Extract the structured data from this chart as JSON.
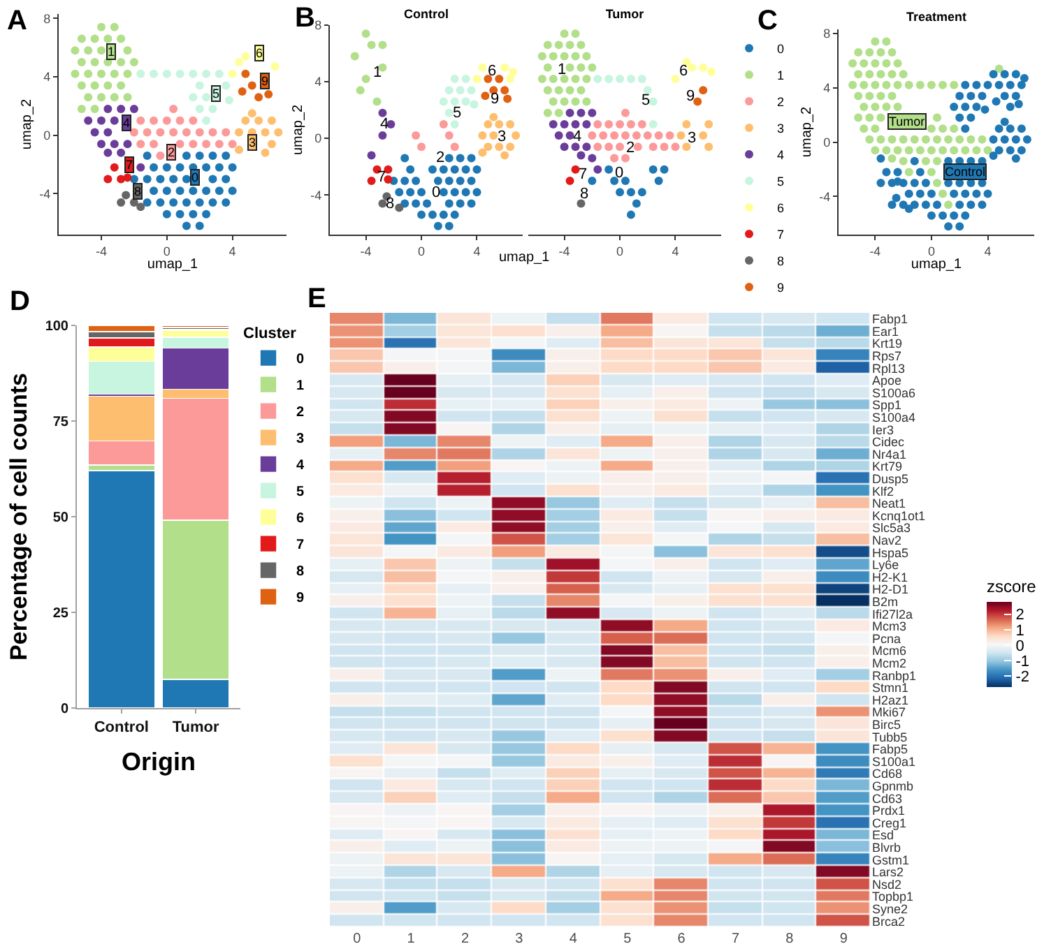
{
  "chart_data": [
    {
      "type": "scatter",
      "xlabel": "umap_1",
      "ylabel": "umap_2",
      "xlim": [
        -6.6,
        7.3
      ],
      "ylim": [
        -6.8,
        8.3
      ],
      "xticks": [
        -4,
        0,
        4
      ],
      "yticks": [
        -4,
        0,
        4,
        8
      ],
      "marker": "circle",
      "series": [
        {
          "color": "#1f78b4",
          "x": [
            -1.2,
            1.2,
            2.0,
            2.8,
            3.6,
            -0.8,
            0,
            0.8,
            1.6,
            2.4,
            3.2,
            4.0,
            -2.0,
            -1.2,
            -0.4,
            0.4,
            1.2,
            2.8,
            3.6,
            -0.8,
            0,
            0.8,
            1.6,
            2.4,
            3.2,
            4.0,
            -1.2,
            -0.4,
            0.4,
            1.2,
            2.0,
            2.8,
            3.6,
            0,
            0.8,
            1.6,
            2.4,
            1.2,
            2.0
          ],
          "values": [
            -1.4,
            -1.4,
            -1.4,
            -1.4,
            -1.4,
            -2.2,
            -2.2,
            -2.2,
            -2.2,
            -2.2,
            -2.2,
            -2.2,
            -3.0,
            -3.0,
            -3.0,
            -3.0,
            -3.0,
            -3.0,
            -3.0,
            -3.8,
            -3.8,
            -3.8,
            -3.8,
            -3.8,
            -3.8,
            -3.8,
            -4.6,
            -4.6,
            -4.6,
            -4.6,
            -4.6,
            -4.6,
            -4.6,
            -5.4,
            -5.4,
            -5.4,
            -5.4,
            -6.2,
            -6.2
          ]
        },
        {
          "color": "#b2df8a",
          "x": [
            -4.0,
            -3.2,
            -5.2,
            -4.4,
            -3.6,
            -2.8,
            -5.6,
            -4.8,
            -4.0,
            -2.4,
            -5.2,
            -4.4,
            -3.6,
            -2.8,
            -2.0,
            -5.6,
            -4.8,
            -4.0,
            -3.2,
            -2.4,
            -5.2,
            -4.4,
            -3.6,
            -2.8,
            -4.8,
            -4.0,
            -3.2,
            -2.4,
            -5.2,
            -4.4
          ],
          "values": [
            7.4,
            7.4,
            6.6,
            6.6,
            6.6,
            6.6,
            5.8,
            5.8,
            5.8,
            5.8,
            5.0,
            5.0,
            5.0,
            5.0,
            5.0,
            4.2,
            4.2,
            4.2,
            4.2,
            4.2,
            3.4,
            3.4,
            3.4,
            3.4,
            2.6,
            2.6,
            2.6,
            2.6,
            1.8,
            1.8
          ]
        },
        {
          "color": "#fb9a99",
          "x": [
            0.4,
            -1.6,
            -0.8,
            0,
            0.8,
            1.6,
            -2.0,
            -1.2,
            -0.4,
            0.4,
            1.2,
            2.0,
            2.8,
            3.6,
            -1.6,
            -0.8,
            0.8,
            1.6,
            2.4,
            3.2,
            4.0,
            -0.4
          ],
          "values": [
            1.8,
            1.0,
            1.0,
            1.0,
            1.0,
            1.0,
            0.2,
            0.2,
            0.2,
            0.2,
            0.2,
            0.2,
            0.2,
            0.2,
            -0.6,
            -0.6,
            -0.6,
            -0.6,
            -0.6,
            -0.6,
            -0.6,
            -1.4
          ]
        },
        {
          "color": "#fdbf6f",
          "x": [
            4.8,
            5.6,
            6.4,
            4.4,
            5.2,
            6.0,
            6.8,
            6.4,
            6.0,
            4.4,
            5.2
          ],
          "values": [
            1.0,
            1.0,
            1.0,
            0.2,
            0.2,
            0.2,
            0.2,
            -0.6,
            -1.2,
            -1.0,
            1.5
          ]
        },
        {
          "color": "#6a3d9a",
          "x": [
            -3.6,
            -2.8,
            -2.0,
            -4.8,
            -4.0,
            -3.2,
            -4.4,
            -3.6,
            -4.0,
            -3.2,
            -2.4,
            -1.6,
            -2.8,
            -3.6
          ],
          "values": [
            1.8,
            1.8,
            1.8,
            1.0,
            1.0,
            1.0,
            0.2,
            0.2,
            -0.6,
            -0.6,
            -0.6,
            -2.2,
            -1.2,
            -1.2
          ]
        },
        {
          "color": "#c7f5e0",
          "x": [
            -1.6,
            -0.8,
            0,
            0.8,
            1.6,
            2.4,
            3.2,
            2.0,
            3.6,
            1.6,
            2.4,
            2.0,
            2.8,
            2.4,
            3.8
          ],
          "values": [
            4.2,
            4.2,
            4.2,
            4.2,
            4.2,
            4.2,
            4.2,
            3.4,
            3.4,
            2.6,
            2.6,
            1.8,
            1.8,
            1.0,
            2.4
          ]
        },
        {
          "color": "#ffff99",
          "x": [
            4.4,
            4.0,
            4.8,
            6.6
          ],
          "values": [
            5.0,
            4.2,
            5.4,
            4.7
          ]
        },
        {
          "color": "#e31a1c",
          "x": [
            -3.2,
            -3.6,
            -2.8,
            -2.4
          ],
          "values": [
            -2.2,
            -3.0,
            -3.0,
            -2.9
          ]
        },
        {
          "color": "#666666",
          "x": [
            -2.8,
            -2.0,
            -2.5,
            -1.6
          ],
          "values": [
            -4.6,
            -4.6,
            -4.1,
            -4.9
          ]
        },
        {
          "color": "#df6213",
          "x": [
            4.8,
            5.2,
            5.6,
            4.6,
            6.2
          ],
          "values": [
            4.2,
            3.4,
            2.6,
            3.0,
            2.8
          ]
        }
      ],
      "annotations": [
        {
          "text": "0",
          "x": 1.7,
          "y": -2.9
        },
        {
          "text": "1",
          "x": -3.4,
          "y": 5.7
        },
        {
          "text": "2",
          "x": 0.3,
          "y": -1.2
        },
        {
          "text": "3",
          "x": 5.2,
          "y": -0.5
        },
        {
          "text": "4",
          "x": -2.5,
          "y": 0.8
        },
        {
          "text": "5",
          "x": 3.0,
          "y": 2.9
        },
        {
          "text": "6",
          "x": 5.6,
          "y": 5.6
        },
        {
          "text": "7",
          "x": -2.3,
          "y": -2.0
        },
        {
          "text": "8",
          "x": -1.8,
          "y": -3.8
        },
        {
          "text": "9",
          "x": 6.0,
          "y": 3.7
        },
        "A"
      ]
    },
    {
      "type": "scatter",
      "title": "Control",
      "xlabel": "umap_1",
      "ylabel": "umap_2",
      "xlim": [
        -6.6,
        7.3
      ],
      "ylim": [
        -6.8,
        8
      ],
      "xticks": [
        -4,
        0,
        4
      ],
      "yticks": [
        -4,
        0,
        4,
        8
      ],
      "marker": "circle",
      "series": [
        {
          "color": "#1f78b4",
          "x": [
            -1.2,
            2.0,
            2.8,
            3.6,
            -0.8,
            0.8,
            1.6,
            2.4,
            3.2,
            4.0,
            -2.0,
            -1.2,
            -0.4,
            1.2,
            2.0,
            2.8,
            3.6,
            -1.6,
            -0.8,
            0,
            1.6,
            2.4,
            3.2,
            4.0,
            -1.2,
            -0.4,
            0.4,
            2.0,
            2.8,
            3.6,
            0,
            0.8,
            1.6,
            2.4,
            1.2,
            2.0
          ],
          "values": [
            -1.4,
            -1.4,
            -1.4,
            -1.4,
            -2.2,
            -2.2,
            -2.2,
            -2.2,
            -2.2,
            -2.2,
            -3.0,
            -3.0,
            -3.0,
            -3.0,
            -3.0,
            -3.0,
            -3.0,
            -3.8,
            -3.8,
            -3.8,
            -3.8,
            -3.8,
            -3.8,
            -3.8,
            -4.6,
            -4.6,
            -4.6,
            -4.6,
            -4.6,
            -4.6,
            -5.4,
            -5.4,
            -5.4,
            -5.4,
            -6.2,
            -6.2
          ]
        },
        {
          "color": "#b2df8a",
          "x": [
            -4.0,
            -3.6,
            -2.8,
            -4.8,
            -2.8,
            -4.0,
            -4.4,
            -3.2
          ],
          "values": [
            7.4,
            6.6,
            6.6,
            5.8,
            5.0,
            4.2,
            3.4,
            2.6
          ]
        },
        {
          "color": "#fb9a99",
          "x": [
            1.6,
            -0.4,
            2.0,
            0,
            2.4
          ],
          "values": [
            1.0,
            0.2,
            0.2,
            -0.6,
            -0.6
          ]
        },
        {
          "color": "#fdbf6f",
          "x": [
            4.8,
            5.6,
            6.4,
            4.4,
            5.2,
            6.8,
            4.8,
            5.6,
            6.4,
            6.0,
            4.4,
            5.2
          ],
          "values": [
            1.0,
            1.0,
            1.0,
            0.2,
            0.2,
            0.2,
            -0.6,
            -0.6,
            -0.6,
            -1.2,
            -1.0,
            1.5
          ]
        },
        {
          "color": "#6a3d9a",
          "x": [
            -2.8,
            -2.8,
            -3.6,
            -2.2
          ],
          "values": [
            1.8,
            0.2,
            -1.2,
            1.0
          ]
        },
        {
          "color": "#c7f5e0",
          "x": [
            2.4,
            3.2,
            2.0,
            2.8,
            3.6,
            1.6,
            2.4,
            3.2,
            2.0,
            2.4,
            3.8
          ],
          "values": [
            4.2,
            4.2,
            3.4,
            3.4,
            3.4,
            2.6,
            2.6,
            2.6,
            1.8,
            1.0,
            2.4
          ]
        },
        {
          "color": "#ffff99",
          "x": [
            4.4,
            6.0,
            4.0,
            6.4,
            6.6
          ],
          "values": [
            5.0,
            5.0,
            4.2,
            4.2,
            4.7
          ]
        },
        {
          "color": "#e31a1c",
          "x": [
            -3.2,
            -2.4,
            -3.6,
            -2.4
          ],
          "values": [
            -2.2,
            -2.2,
            -3.0,
            -2.9
          ]
        },
        {
          "color": "#666666",
          "x": [
            -2.8,
            -2.5,
            -1.6
          ],
          "values": [
            -4.6,
            -4.1,
            -4.9
          ]
        },
        {
          "color": "#df6213",
          "x": [
            4.8,
            5.6,
            5.2,
            6.0,
            4.6,
            6.2
          ],
          "values": [
            4.2,
            4.2,
            3.4,
            3.4,
            3.0,
            2.8
          ]
        }
      ],
      "annotations": [
        {
          "text": "0",
          "x": 1.1,
          "y": -3.8
        },
        {
          "text": "1",
          "x": -3.2,
          "y": 4.6
        },
        {
          "text": "2",
          "x": 1.4,
          "y": -1.4
        },
        {
          "text": "3",
          "x": 5.8,
          "y": 0.1
        },
        {
          "text": "4",
          "x": -2.7,
          "y": 1.0
        },
        {
          "text": "5",
          "x": 2.6,
          "y": 1.8
        },
        {
          "text": "6",
          "x": 5.1,
          "y": 4.7
        },
        {
          "text": "7",
          "x": -2.9,
          "y": -2.8
        },
        {
          "text": "8",
          "x": -2.3,
          "y": -4.6
        },
        {
          "text": "9",
          "x": 5.3,
          "y": 2.8
        },
        "B"
      ]
    },
    {
      "type": "scatter",
      "title": "Tumor",
      "xlim": [
        -6.6,
        7.3
      ],
      "ylim": [
        -6.8,
        8
      ],
      "xticks": [
        -4,
        0,
        4
      ],
      "marker": "circle",
      "tick_labels": "x",
      "legend": "right",
      "series": [
        {
          "name": "0",
          "color": "#1f78b4",
          "x": [
            -0.8,
            2.4,
            3.2,
            -2.0,
            -0.4,
            0.4,
            2.8,
            0,
            0.8,
            1.6,
            1.2,
            0.8
          ],
          "values": [
            -2.2,
            -2.2,
            -2.2,
            -3.0,
            -3.0,
            -3.0,
            -3.0,
            -3.8,
            -3.8,
            -3.8,
            -4.6,
            -5.4
          ]
        },
        {
          "name": "1",
          "color": "#b2df8a",
          "x": [
            -4.0,
            -3.2,
            -5.2,
            -4.4,
            -3.6,
            -2.8,
            -5.6,
            -4.8,
            -4.0,
            -3.2,
            -2.4,
            -5.2,
            -3.6,
            -2.8,
            -2.0,
            -5.6,
            -4.8,
            -4.0,
            -3.2,
            -2.4,
            -5.2,
            -4.4,
            -3.6,
            -2.8,
            -4.8,
            -4.0,
            -3.2,
            -2.4,
            -5.2,
            -4.4
          ],
          "values": [
            7.4,
            7.4,
            6.6,
            6.6,
            6.6,
            6.6,
            5.8,
            5.8,
            5.8,
            5.8,
            5.8,
            5.0,
            5.0,
            5.0,
            5.0,
            4.2,
            4.2,
            4.2,
            4.2,
            4.2,
            3.4,
            3.4,
            3.4,
            3.4,
            2.6,
            2.6,
            2.6,
            2.6,
            1.8,
            1.8
          ]
        },
        {
          "name": "2",
          "color": "#fb9a99",
          "x": [
            0.4,
            -1.6,
            -0.8,
            0,
            0.8,
            1.6,
            -2.0,
            -1.2,
            -0.4,
            0.4,
            1.2,
            2.0,
            2.8,
            3.6,
            -1.6,
            -0.8,
            0,
            1.3,
            2.4,
            3.2,
            4.0,
            -0.4,
            0.4
          ],
          "values": [
            1.8,
            1.0,
            1.0,
            1.0,
            1.0,
            1.0,
            0.2,
            0.2,
            0.2,
            0.2,
            0.2,
            0.2,
            0.2,
            0.2,
            -0.6,
            -0.6,
            -0.6,
            -0.6,
            -0.6,
            -0.6,
            -0.6,
            -1.4,
            -1.4
          ]
        },
        {
          "name": "3",
          "color": "#fdbf6f",
          "x": [
            4.8,
            6.4,
            4.4,
            6.0,
            4.8,
            6.4
          ],
          "values": [
            1.0,
            1.0,
            0.2,
            0.2,
            -0.6,
            -0.6
          ]
        },
        {
          "name": "4",
          "color": "#6a3d9a",
          "x": [
            -3.6,
            -2.8,
            -2.0,
            -4.8,
            -4.0,
            -3.2,
            -2.4,
            -4.4,
            -3.6,
            -4.0,
            -3.2,
            -2.4,
            -2.0,
            -1.6,
            -2.8
          ],
          "values": [
            1.8,
            1.8,
            1.8,
            1.0,
            1.0,
            1.0,
            1.0,
            0.2,
            0.2,
            -0.6,
            -0.6,
            -0.6,
            -1.4,
            -2.2,
            -1.2
          ]
        },
        {
          "name": "5",
          "color": "#c7f5e0",
          "x": [
            -1.6,
            -0.8,
            0,
            0.8,
            1.6,
            2.0,
            2.4,
            2.4
          ],
          "values": [
            4.2,
            4.2,
            4.2,
            4.2,
            4.2,
            3.4,
            2.6,
            1.0
          ]
        },
        {
          "name": "6",
          "color": "#ffff99",
          "x": [
            5.2,
            4.0,
            4.8,
            6.0,
            6.6
          ],
          "values": [
            5.0,
            4.2,
            5.4,
            5.0,
            4.7
          ]
        },
        {
          "name": "7",
          "color": "#e31a1c",
          "x": [
            -3.6,
            -3.2
          ],
          "values": [
            -3.0,
            -2.2
          ]
        },
        {
          "name": "8",
          "color": "#666666",
          "x": [
            -2.8
          ],
          "values": [
            -4.6
          ]
        },
        {
          "name": "9",
          "color": "#df6213",
          "x": [
            6.0,
            5.6
          ],
          "values": [
            3.4,
            2.6
          ]
        }
      ],
      "annotations": [
        {
          "text": "0",
          "x": -0.1,
          "y": -2.5
        },
        {
          "text": "1",
          "x": -4.2,
          "y": 4.8
        },
        {
          "text": "2",
          "x": 0.8,
          "y": -0.7
        },
        {
          "text": "3",
          "x": 5.2,
          "y": 0
        },
        {
          "text": "4",
          "x": -3.1,
          "y": 0.1
        },
        {
          "text": "5",
          "x": 1.9,
          "y": 2.7
        },
        {
          "text": "6",
          "x": 4.6,
          "y": 4.7
        },
        {
          "text": "7",
          "x": -2.7,
          "y": -2.6
        },
        {
          "text": "8",
          "x": -2.6,
          "y": -3.9
        },
        {
          "text": "9",
          "x": 5.1,
          "y": 3.0
        }
      ]
    },
    {
      "type": "scatter",
      "title": "Treatment",
      "xlabel": "umap_1",
      "ylabel": "umap_2",
      "xlim": [
        -6.6,
        7.3
      ],
      "ylim": [
        -6.8,
        8.3
      ],
      "xticks": [
        -4,
        0,
        4
      ],
      "yticks": [
        -4,
        0,
        4,
        8
      ],
      "marker": "circle",
      "series": [
        {
          "color": "#b2df8a",
          "x": [
            -4.0,
            -3.2,
            -5.2,
            -4.4,
            -3.6,
            -2.8,
            -5.6,
            -4.8,
            -4.0,
            -3.2,
            -2.4,
            -5.2,
            -4.4,
            -3.6,
            -2.8,
            -2.0,
            -5.6,
            -4.8,
            -4.0,
            -3.2,
            -2.4,
            -5.2,
            -4.4,
            -3.6,
            -2.8,
            -4.8,
            -4.0,
            -3.2,
            -2.4,
            -5.2,
            -4.4,
            0.4,
            0,
            0.8,
            1.6,
            -2.0,
            -1.2,
            -0.4,
            0.4,
            1.2,
            2.0,
            2.8,
            3.6,
            -1.6,
            -0.8,
            0,
            0.8,
            1.6,
            2.4,
            3.2,
            4.0,
            -0.4,
            0.4,
            -3.6,
            -4.8,
            -4.0,
            -4.4,
            -3.6,
            -2.8,
            -4.0,
            -3.2,
            -2.4,
            -2.0,
            -1.6,
            -2.8,
            0,
            0.4,
            0.8,
            1.2,
            -1.6,
            -0.8,
            0,
            0.8,
            1.6,
            4.8
          ],
          "values": [
            7.4,
            7.4,
            6.6,
            6.6,
            6.6,
            6.6,
            5.8,
            5.8,
            5.8,
            5.8,
            5.8,
            5.0,
            5.0,
            5.0,
            5.0,
            5.0,
            4.2,
            4.2,
            4.2,
            4.2,
            4.2,
            3.4,
            3.4,
            3.4,
            3.4,
            2.6,
            2.6,
            2.6,
            2.6,
            1.8,
            1.8,
            1.8,
            1.0,
            1.0,
            1.0,
            0.2,
            0.2,
            0.2,
            0.2,
            0.2,
            0.2,
            0.2,
            0.2,
            -0.6,
            -0.6,
            -0.6,
            -0.6,
            -0.6,
            -0.6,
            -0.6,
            -0.6,
            -1.4,
            -1.4,
            1.8,
            1.0,
            1.0,
            0.2,
            0.2,
            0.2,
            -0.6,
            -0.6,
            -0.6,
            -1.4,
            -2.2,
            -1.2,
            -2.2,
            -3.0,
            -3.8,
            -4.6,
            4.2,
            4.2,
            4.2,
            4.2,
            4.2,
            5.4
          ]
        },
        {
          "color": "#1f78b4",
          "x": [
            -1.2,
            1.2,
            2.0,
            2.8,
            3.6,
            -0.8,
            -2.0,
            -1.2,
            -0.4,
            1.2,
            2.0,
            2.8,
            3.6,
            -1.6,
            -0.8,
            0,
            1.6,
            2.4,
            3.2,
            4.0,
            -1.2,
            -0.4,
            0.4,
            2.0,
            2.8,
            3.6,
            0,
            0.8,
            1.6,
            2.4,
            1.2,
            2.0,
            4.8,
            5.6,
            6.4,
            4.4,
            5.2,
            6.0,
            6.8,
            4.8,
            5.6,
            6.4,
            6.0,
            4.4,
            5.2,
            2.4,
            3.2,
            2.0,
            2.8,
            3.6,
            1.6,
            2.4,
            3.2,
            2.0,
            2.8,
            2.4,
            3.8,
            4.4,
            5.2,
            6.0,
            4.0,
            6.4,
            6.6,
            -3.2,
            -2.4,
            -3.6,
            -2.8,
            -2.4,
            -2.8,
            -2.0,
            -2.5,
            -1.6,
            4.8,
            5.6,
            5.2,
            6.0,
            5.6,
            4.6,
            6.2,
            -3.6
          ],
          "values": [
            -1.4,
            -1.4,
            -1.4,
            -1.4,
            -1.4,
            -2.2,
            -3.0,
            -3.0,
            -3.0,
            -3.0,
            -3.0,
            -3.0,
            -3.0,
            -3.8,
            -3.8,
            -3.8,
            -3.8,
            -3.8,
            -3.8,
            -3.8,
            -4.6,
            -4.6,
            -4.6,
            -4.6,
            -4.6,
            -4.6,
            -5.4,
            -5.4,
            -5.4,
            -5.4,
            -6.2,
            -6.2,
            1.0,
            1.0,
            1.0,
            0.2,
            0.2,
            0.2,
            0.2,
            -0.6,
            -0.6,
            -0.6,
            -1.2,
            -1.0,
            1.5,
            4.2,
            4.2,
            3.4,
            3.4,
            3.4,
            2.6,
            2.6,
            2.6,
            1.8,
            1.8,
            1.0,
            2.4,
            5.0,
            5.0,
            5.0,
            4.2,
            4.2,
            4.7,
            -2.2,
            -2.2,
            -3.0,
            -3.0,
            -2.9,
            -4.6,
            -4.6,
            -4.1,
            -4.9,
            4.2,
            4.2,
            3.4,
            3.4,
            2.6,
            3.0,
            2.8,
            -1.2
          ]
        }
      ],
      "annotations": [
        {
          "text": "Tumor",
          "x": -1.7,
          "y": 1.5
        },
        {
          "text": "Control",
          "x": 2.4,
          "y": -2.2
        },
        "C"
      ]
    },
    {
      "type": "bar",
      "stacked": true,
      "categories": [
        "Control",
        "Tumor"
      ],
      "xlabel": "Origin",
      "ylabel": "Percentage of cell counts",
      "ylim": [
        0,
        100
      ],
      "yticks": [
        0,
        25,
        50,
        75,
        100
      ],
      "legend": "right",
      "legend_title": "Cluster",
      "series": [
        {
          "name": "0",
          "color": "#1f78b4",
          "values": [
            62.0,
            7.5
          ]
        },
        {
          "name": "1",
          "color": "#b2df8a",
          "values": [
            1.5,
            41.6
          ]
        },
        {
          "name": "2",
          "color": "#fb9a99",
          "values": [
            6.3,
            31.8
          ]
        },
        {
          "name": "3",
          "color": "#fdbf6f",
          "values": [
            11.7,
            2.4
          ]
        },
        {
          "name": "4",
          "color": "#6a3d9a",
          "values": [
            0.5,
            10.8
          ]
        },
        {
          "name": "5",
          "color": "#c7f5e0",
          "values": [
            8.6,
            2.8
          ]
        },
        {
          "name": "6",
          "color": "#ffff99",
          "values": [
            3.7,
            1.8
          ]
        },
        {
          "name": "7",
          "color": "#e31a1c",
          "values": [
            2.4,
            0.2
          ]
        },
        {
          "name": "8",
          "color": "#666666",
          "values": [
            1.7,
            0.6
          ]
        },
        {
          "name": "9",
          "color": "#df6213",
          "values": [
            1.6,
            0.5
          ]
        }
      ],
      "annotations": [
        "D"
      ]
    },
    {
      "type": "heatmap",
      "categories": [
        "0",
        "1",
        "2",
        "3",
        "4",
        "5",
        "6",
        "7",
        "8",
        "9"
      ],
      "y_categories": [
        "Fabp1",
        "Ear1",
        "Krt19",
        "Rps7",
        "Rpl13",
        "Apoe",
        "S100a6",
        "Spp1",
        "S100a4",
        "Ier3",
        "Cidec",
        "Nr4a1",
        "Krt79",
        "Dusp5",
        "Klf2",
        "Neat1",
        "Kcnq1ot1",
        "Slc5a3",
        "Nav2",
        "Hspa5",
        "Ly6e",
        "H2-K1",
        "H2-D1",
        "B2m",
        "Ifi27l2a",
        "Mcm3",
        "Pcna",
        "Mcm6",
        "Mcm2",
        "Ranbp1",
        "Stmn1",
        "H2az1",
        "Mki67",
        "Birc5",
        "Tubb5",
        "Fabp5",
        "S100a1",
        "Cd68",
        "Gpnmb",
        "Cd63",
        "Prdx1",
        "Creg1",
        "Esd",
        "Blvrb",
        "Gstm1",
        "Lars2",
        "Nsd2",
        "Topbp1",
        "Syne2",
        "Brca2"
      ],
      "cells": [
        [
          1.4,
          -1.2,
          0.4,
          -0.1,
          -0.6,
          1.5,
          0.3,
          -0.5,
          -0.4,
          -0.5
        ],
        [
          1.3,
          -0.9,
          0.4,
          0.5,
          0.2,
          1.1,
          0.1,
          -0.6,
          -0.7,
          -1.3
        ],
        [
          1.3,
          -2.0,
          0.4,
          0.0,
          -0.3,
          0.9,
          0.4,
          0.4,
          -0.6,
          -0.7
        ],
        [
          0.8,
          0.0,
          0.0,
          -1.7,
          0.2,
          0.6,
          0.6,
          0.8,
          0.4,
          -1.8
        ],
        [
          0.8,
          0.2,
          0.0,
          -1.2,
          0.2,
          0.6,
          0.6,
          0.8,
          0.3,
          -2.2
        ],
        [
          -0.4,
          2.8,
          -0.2,
          -0.4,
          0.7,
          -0.4,
          -0.3,
          -0.4,
          -0.5,
          -0.3
        ],
        [
          -0.4,
          2.8,
          -0.4,
          -0.4,
          0.5,
          -0.2,
          0.2,
          -0.5,
          -0.6,
          -0.4
        ],
        [
          -0.5,
          2.1,
          -0.2,
          -0.2,
          0.7,
          0.2,
          0.3,
          -0.1,
          -1.0,
          -1.1
        ],
        [
          -0.4,
          2.6,
          -0.5,
          -0.6,
          0.5,
          -0.1,
          0.5,
          -0.6,
          -0.5,
          -0.4
        ],
        [
          -0.6,
          2.6,
          0.1,
          -0.8,
          0.2,
          -0.2,
          -0.1,
          -0.2,
          -0.3,
          -0.8
        ],
        [
          1.2,
          -1.2,
          1.4,
          -0.1,
          -0.3,
          1.1,
          0.2,
          -0.8,
          -0.4,
          -0.7
        ],
        [
          -0.2,
          1.4,
          1.5,
          -0.8,
          0.4,
          -0.1,
          0.2,
          -0.8,
          -0.4,
          -1.3
        ],
        [
          1.1,
          -1.5,
          1.2,
          0.1,
          -0.1,
          1.1,
          0.2,
          -0.3,
          -0.8,
          -0.8
        ],
        [
          0.5,
          -0.4,
          2.2,
          -0.3,
          -0.1,
          0.2,
          0.2,
          -0.1,
          0.0,
          -2.0
        ],
        [
          0.3,
          -0.1,
          2.2,
          -0.5,
          0.5,
          0.2,
          0.3,
          -0.3,
          -0.8,
          -1.6
        ],
        [
          -0.1,
          -0.5,
          -0.1,
          2.5,
          -1.0,
          -0.3,
          -0.6,
          -0.4,
          -0.2,
          0.9
        ],
        [
          0.2,
          -1.1,
          -0.5,
          2.5,
          -0.9,
          0.3,
          -0.6,
          0.1,
          0.2,
          0.3
        ],
        [
          0.3,
          -1.4,
          0.3,
          2.5,
          -0.9,
          0.2,
          -0.3,
          0.0,
          -0.4,
          0.3
        ],
        [
          0.4,
          -1.6,
          0.0,
          1.8,
          -0.9,
          0.4,
          0.0,
          -0.8,
          -0.6,
          0.9
        ],
        [
          0.4,
          0.0,
          0.3,
          1.2,
          0.3,
          0.0,
          -1.1,
          0.4,
          0.5,
          -2.4
        ],
        [
          -0.2,
          0.8,
          -0.1,
          -0.6,
          2.4,
          0.0,
          0.2,
          -0.5,
          -0.3,
          -1.4
        ],
        [
          -0.4,
          0.9,
          0.0,
          0.2,
          2.0,
          -0.5,
          -0.1,
          -0.4,
          0.2,
          -1.7
        ],
        [
          -0.2,
          0.6,
          -0.2,
          0.2,
          1.7,
          -0.4,
          -0.2,
          0.5,
          0.5,
          -2.5
        ],
        [
          0.2,
          0.5,
          -0.1,
          -0.6,
          1.4,
          0.0,
          0.2,
          0.5,
          0.5,
          -2.7
        ],
        [
          -0.5,
          1.0,
          -0.2,
          -0.7,
          2.5,
          -0.4,
          -0.1,
          -0.5,
          -0.3,
          -0.7
        ],
        [
          -0.4,
          -0.4,
          -0.4,
          -0.4,
          -0.4,
          2.5,
          1.1,
          -0.5,
          -0.4,
          0.3
        ],
        [
          -0.4,
          -0.5,
          -0.4,
          -1.0,
          -0.4,
          1.7,
          1.6,
          -0.5,
          -0.5,
          0.0
        ],
        [
          -0.5,
          -0.5,
          -0.5,
          -0.4,
          -0.4,
          2.6,
          0.9,
          -0.5,
          -0.6,
          0.2
        ],
        [
          -0.5,
          -0.5,
          -0.4,
          -0.3,
          -0.4,
          2.6,
          0.9,
          -0.5,
          -0.5,
          0.2
        ],
        [
          0.2,
          -0.4,
          -0.4,
          -1.5,
          -0.1,
          1.5,
          1.3,
          0.2,
          -0.3,
          -0.9
        ],
        [
          -0.5,
          -0.5,
          -0.5,
          -0.5,
          -0.5,
          0.6,
          2.6,
          -0.5,
          -0.5,
          0.6
        ],
        [
          0.2,
          -0.2,
          -0.3,
          -1.4,
          -0.3,
          0.6,
          2.5,
          -0.7,
          0.2,
          -0.5
        ],
        [
          -0.6,
          -0.6,
          -0.5,
          -0.5,
          -0.5,
          0.0,
          2.5,
          -0.5,
          -0.4,
          1.3
        ],
        [
          -0.5,
          -0.5,
          -0.5,
          -0.5,
          -0.5,
          -0.2,
          2.8,
          -0.5,
          -0.4,
          0.4
        ],
        [
          -0.4,
          -0.5,
          -0.4,
          -1.0,
          -0.3,
          0.5,
          2.6,
          -0.5,
          -0.6,
          0.4
        ],
        [
          -0.3,
          0.4,
          -0.4,
          -1.0,
          0.6,
          -0.2,
          -0.4,
          1.8,
          1.0,
          -1.6
        ],
        [
          0.5,
          0.0,
          0.0,
          -1.0,
          0.3,
          0.2,
          -0.3,
          2.1,
          0.1,
          -1.7
        ],
        [
          0.1,
          -0.2,
          -0.6,
          -0.3,
          0.7,
          -0.2,
          -0.4,
          1.8,
          1.0,
          -1.9
        ],
        [
          -0.5,
          0.3,
          -0.4,
          -0.5,
          0.7,
          -0.5,
          -0.5,
          2.1,
          0.6,
          -1.2
        ],
        [
          -0.4,
          0.7,
          -0.3,
          -0.6,
          1.1,
          -0.5,
          -0.8,
          1.6,
          0.8,
          -1.5
        ],
        [
          0.1,
          -0.1,
          0.1,
          -0.9,
          0.2,
          0.1,
          -0.1,
          0.2,
          2.3,
          -1.6
        ],
        [
          0.1,
          0.0,
          0.1,
          -0.4,
          0.3,
          -0.2,
          -0.3,
          0.5,
          2.0,
          -2.0
        ],
        [
          -0.3,
          0.1,
          -0.4,
          -1.1,
          0.5,
          -0.2,
          -0.1,
          0.6,
          2.3,
          -1.2
        ],
        [
          0.2,
          -0.3,
          -0.1,
          -1.1,
          0.3,
          -0.1,
          -0.1,
          0.0,
          2.6,
          -1.1
        ],
        [
          -0.1,
          0.4,
          0.4,
          -1.1,
          0.1,
          -0.2,
          -0.4,
          1.1,
          1.6,
          -1.8
        ],
        [
          -0.1,
          -0.8,
          -0.4,
          1.1,
          -0.8,
          -0.2,
          -0.4,
          -0.5,
          -0.4,
          2.6
        ],
        [
          -0.4,
          -0.6,
          -0.6,
          -0.4,
          -0.5,
          0.5,
          1.4,
          -0.5,
          -0.5,
          1.8
        ],
        [
          -0.5,
          -0.5,
          -0.6,
          -0.4,
          -0.6,
          1.1,
          1.4,
          -0.5,
          -0.5,
          1.5
        ],
        [
          0.2,
          -1.5,
          -0.4,
          0.6,
          -0.9,
          0.5,
          1.3,
          -0.6,
          -0.5,
          1.3
        ],
        [
          -0.5,
          -0.5,
          -0.5,
          -0.5,
          -0.5,
          0.5,
          1.4,
          -0.5,
          -0.5,
          1.8
        ]
      ],
      "clabel": "zscore",
      "clim": [
        -2.7,
        2.8
      ],
      "cticks": [
        -2,
        -1,
        0,
        1,
        2
      ],
      "annotations": [
        "E"
      ]
    }
  ]
}
